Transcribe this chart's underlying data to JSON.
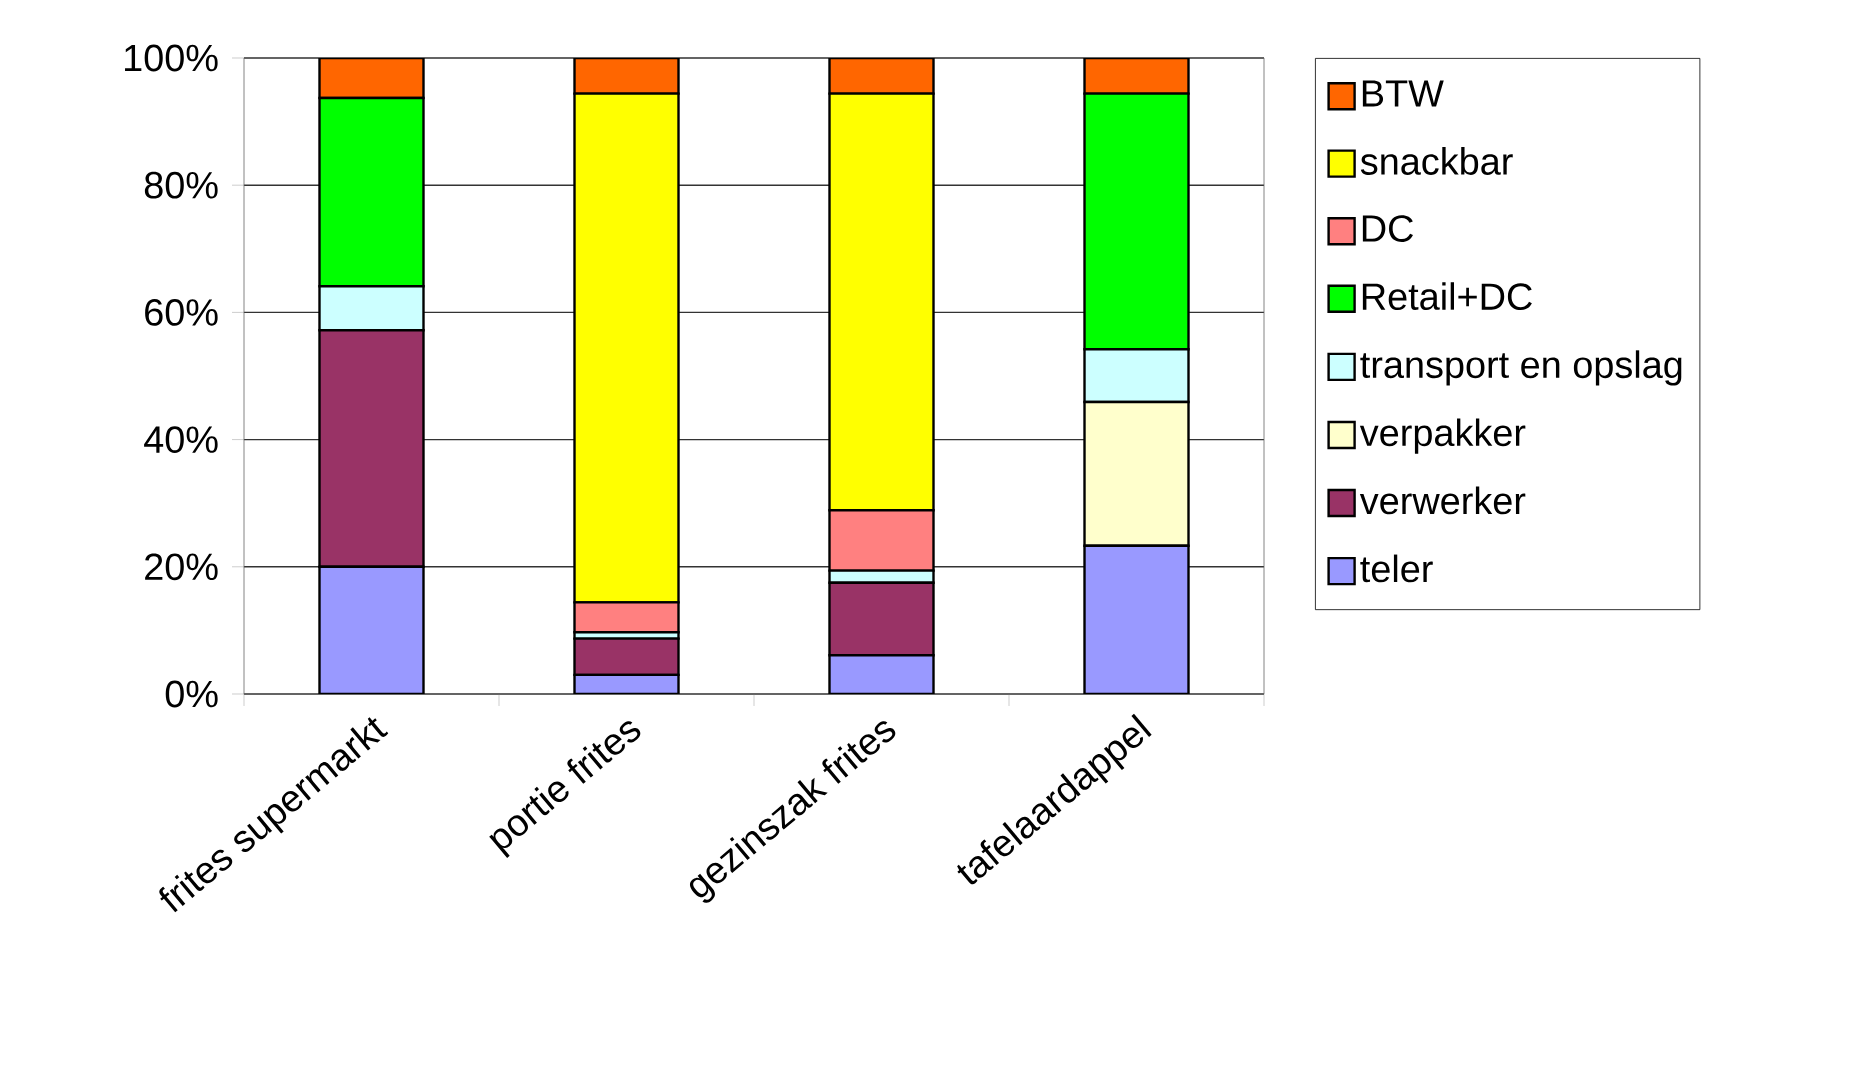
{
  "chart_data": {
    "type": "bar",
    "stacked": true,
    "categories": [
      "frites supermarkt",
      "portie frites",
      "gezinszak frites",
      "tafelaardappel"
    ],
    "series": [
      {
        "name": "teler",
        "color": "#9999ff",
        "values": [
          20,
          3,
          6.1,
          23.3
        ]
      },
      {
        "name": "verwerker",
        "color": "#993366",
        "values": [
          37.2,
          5.7,
          11.4,
          0
        ]
      },
      {
        "name": "verpakker",
        "color": "#ffffcc",
        "values": [
          0,
          0,
          0,
          22.6
        ]
      },
      {
        "name": "transport en opslag",
        "color": "#ccffff",
        "values": [
          6.9,
          1,
          1.9,
          8.3
        ]
      },
      {
        "name": "Retail+DC",
        "color": "#00ff00",
        "values": [
          29.6,
          0,
          0,
          40.2
        ]
      },
      {
        "name": "DC",
        "color": "#ff8080",
        "values": [
          0,
          4.7,
          9.5,
          0
        ]
      },
      {
        "name": "snackbar",
        "color": "#ffff00",
        "values": [
          0,
          80,
          65.5,
          0
        ]
      },
      {
        "name": "BTW",
        "color": "#ff6600",
        "values": [
          6.3,
          5.6,
          5.6,
          5.6
        ]
      }
    ],
    "ylim": [
      0,
      100
    ],
    "yticks": [
      {
        "value": 0,
        "label": "0%"
      },
      {
        "value": 20,
        "label": "20%"
      },
      {
        "value": 40,
        "label": "40%"
      },
      {
        "value": 60,
        "label": "60%"
      },
      {
        "value": 80,
        "label": "80%"
      },
      {
        "value": 100,
        "label": "100%"
      }
    ],
    "grid": "y",
    "legend": "right"
  }
}
